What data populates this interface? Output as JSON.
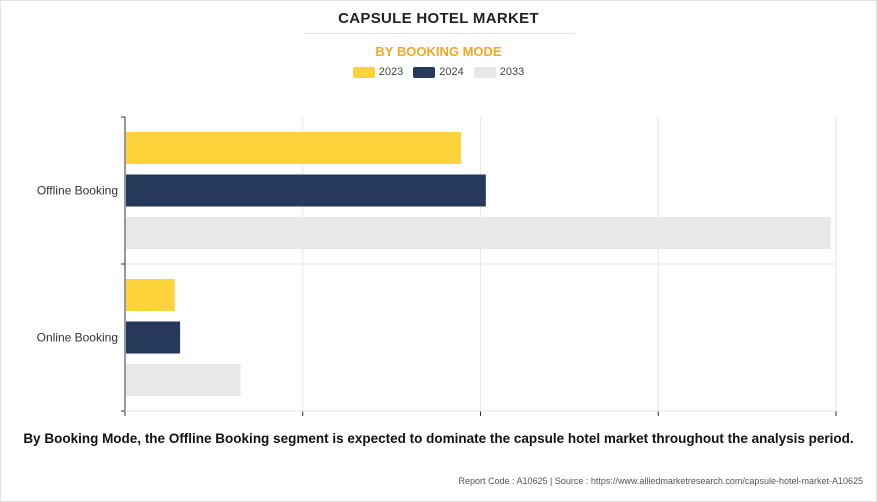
{
  "header": {
    "title": "CAPSULE HOTEL MARKET",
    "subtitle": "BY BOOKING MODE"
  },
  "colors": {
    "y2023": "#fcd33a",
    "y2024": "#27395b",
    "y2033": "#e8e8e8",
    "accent": "#f5a623"
  },
  "chart_data": {
    "type": "bar",
    "orientation": "horizontal",
    "title": "CAPSULE HOTEL MARKET",
    "subtitle": "BY BOOKING MODE",
    "categories": [
      "Offline Booking",
      "Online Booking"
    ],
    "series": [
      {
        "name": "2023",
        "values": [
          1.89,
          0.28
        ]
      },
      {
        "name": "2024",
        "values": [
          2.03,
          0.31
        ]
      },
      {
        "name": "2033",
        "values": [
          3.97,
          0.65
        ]
      }
    ],
    "xlim": [
      0,
      4
    ],
    "grid": true,
    "legend": "top-center",
    "xlabel": "",
    "ylabel": ""
  },
  "caption": "By Booking Mode, the Offline Booking segment is expected to dominate the capsule hotel market throughout the analysis period.",
  "footer": {
    "text": "Report Code : A10625  |  Source : https://www.alliedmarketresearch.com/capsule-hotel-market-A10625"
  }
}
